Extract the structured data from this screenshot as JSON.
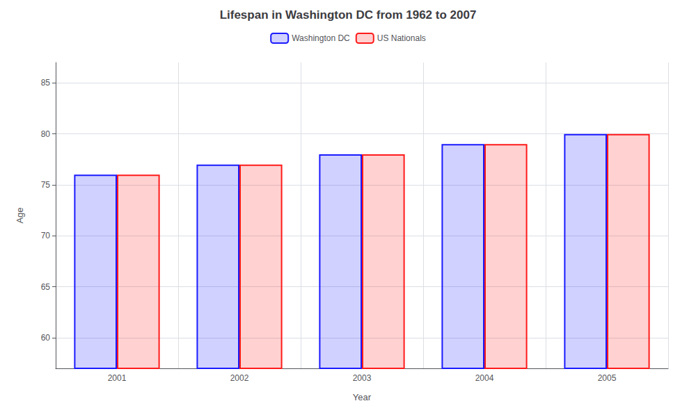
{
  "chart_data": {
    "type": "bar",
    "title": "Lifespan in Washington DC from 1962 to 2007",
    "x_label": "Year",
    "y_label": "Age",
    "categories": [
      "2001",
      "2002",
      "2003",
      "2004",
      "2005"
    ],
    "series": [
      {
        "name": "Washington DC",
        "color": "#1a1aff",
        "values": [
          76,
          77,
          78,
          79,
          80
        ]
      },
      {
        "name": "US Nationals",
        "color": "#ff1a1a",
        "values": [
          76,
          77,
          78,
          79,
          80
        ]
      }
    ],
    "ylim": [
      57,
      87
    ],
    "yticks": [
      60,
      65,
      70,
      75,
      80,
      85
    ],
    "grid": true,
    "legend": "top"
  }
}
